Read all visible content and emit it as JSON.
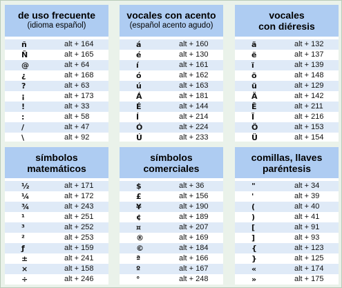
{
  "cards": [
    {
      "title": "de uso frecuente",
      "subtitle": "(idioma español)",
      "rows": [
        {
          "symbol": "ñ",
          "code": "alt + 164"
        },
        {
          "symbol": "Ñ",
          "code": "alt + 165"
        },
        {
          "symbol": "@",
          "code": "alt + 64"
        },
        {
          "symbol": "¿",
          "code": "alt + 168"
        },
        {
          "symbol": "?",
          "code": "alt + 63"
        },
        {
          "symbol": "¡",
          "code": "alt + 173"
        },
        {
          "symbol": "!",
          "code": "alt + 33"
        },
        {
          "symbol": ":",
          "code": "alt + 58"
        },
        {
          "symbol": "/",
          "code": "alt + 47"
        },
        {
          "symbol": "\\",
          "code": "alt + 92"
        }
      ]
    },
    {
      "title": "vocales con acento",
      "subtitle": "(español acento agudo)",
      "rows": [
        {
          "symbol": "á",
          "code": "alt + 160"
        },
        {
          "symbol": "é",
          "code": "alt + 130"
        },
        {
          "symbol": "í",
          "code": "alt + 161"
        },
        {
          "symbol": "ó",
          "code": "alt + 162"
        },
        {
          "symbol": "ú",
          "code": "alt + 163"
        },
        {
          "symbol": "Á",
          "code": "alt + 181"
        },
        {
          "symbol": "É",
          "code": "alt + 144"
        },
        {
          "symbol": "Í",
          "code": "alt + 214"
        },
        {
          "symbol": "Ó",
          "code": "alt + 224"
        },
        {
          "symbol": "Ú",
          "code": "alt + 233"
        }
      ]
    },
    {
      "title": "vocales",
      "subtitle": "con diéresis",
      "rows": [
        {
          "symbol": "ä",
          "code": "alt + 132"
        },
        {
          "symbol": "ë",
          "code": "alt + 137"
        },
        {
          "symbol": "ï",
          "code": "alt + 139"
        },
        {
          "symbol": "ö",
          "code": "alt + 148"
        },
        {
          "symbol": "ü",
          "code": "alt + 129"
        },
        {
          "symbol": "Ä",
          "code": "alt + 142"
        },
        {
          "symbol": "Ë",
          "code": "alt + 211"
        },
        {
          "symbol": "Ï",
          "code": "alt + 216"
        },
        {
          "symbol": "Ö",
          "code": "alt + 153"
        },
        {
          "symbol": "Ü",
          "code": "alt + 154"
        }
      ]
    },
    {
      "title": "símbolos",
      "subtitle": "matemáticos",
      "rows": [
        {
          "symbol": "½",
          "code": "alt + 171"
        },
        {
          "symbol": "¼",
          "code": "alt + 172"
        },
        {
          "symbol": "¾",
          "code": "alt + 243"
        },
        {
          "symbol": "¹",
          "code": "alt + 251"
        },
        {
          "symbol": "³",
          "code": "alt + 252"
        },
        {
          "symbol": "²",
          "code": "alt + 253"
        },
        {
          "symbol": "ƒ",
          "code": "alt + 159"
        },
        {
          "symbol": "±",
          "code": "alt + 241"
        },
        {
          "symbol": "×",
          "code": "alt + 158"
        },
        {
          "symbol": "÷",
          "code": "alt + 246"
        }
      ]
    },
    {
      "title": "símbolos",
      "subtitle": "comerciales",
      "rows": [
        {
          "symbol": "$",
          "code": "alt + 36"
        },
        {
          "symbol": "£",
          "code": "alt + 156"
        },
        {
          "symbol": "¥",
          "code": "alt + 190"
        },
        {
          "symbol": "¢",
          "code": "alt + 189"
        },
        {
          "symbol": "¤",
          "code": "alt + 207"
        },
        {
          "symbol": "®",
          "code": "alt + 169"
        },
        {
          "symbol": "©",
          "code": "alt + 184"
        },
        {
          "symbol": "ª",
          "code": "alt + 166"
        },
        {
          "symbol": "º",
          "code": "alt + 167"
        },
        {
          "symbol": "°",
          "code": "alt + 248"
        }
      ]
    },
    {
      "title": "comillas, llaves",
      "subtitle": "paréntesis",
      "rows": [
        {
          "symbol": "\"",
          "code": "alt + 34"
        },
        {
          "symbol": "'",
          "code": "alt + 39"
        },
        {
          "symbol": "(",
          "code": "alt + 40"
        },
        {
          "symbol": ")",
          "code": "alt + 41"
        },
        {
          "symbol": "[",
          "code": "alt + 91"
        },
        {
          "symbol": "]",
          "code": "alt + 93"
        },
        {
          "symbol": "{",
          "code": "alt + 123"
        },
        {
          "symbol": "}",
          "code": "alt + 125"
        },
        {
          "symbol": "«",
          "code": "alt + 174"
        },
        {
          "symbol": "»",
          "code": "alt + 175"
        }
      ]
    }
  ]
}
